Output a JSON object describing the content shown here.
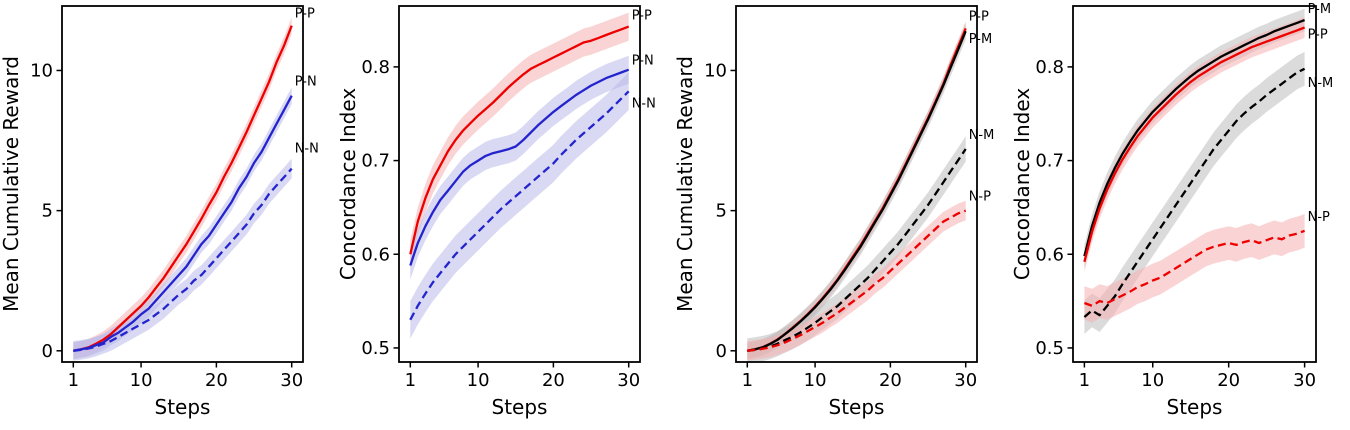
{
  "page": {
    "background": "#ffffff"
  },
  "colors": {
    "red": "#ee0000",
    "blue": "#2424cf",
    "black": "#000000",
    "red_band": "#f5b0b0",
    "blue_band": "#b9b9ea",
    "gray_band": "#bdbdbd"
  },
  "chart_data": [
    {
      "type": "line",
      "title": "",
      "xlabel": "Steps",
      "ylabel": "Mean Cumulative Reward",
      "grid": false,
      "legend": "end-labels",
      "x": [
        1,
        2,
        3,
        4,
        5,
        6,
        7,
        8,
        9,
        10,
        11,
        12,
        13,
        14,
        15,
        16,
        17,
        18,
        19,
        20,
        21,
        22,
        23,
        24,
        25,
        26,
        27,
        28,
        29,
        30
      ],
      "xlim": [
        -0.5,
        31.5
      ],
      "ylim": [
        -0.4,
        12.3
      ],
      "xticks": [
        1,
        10,
        20,
        30
      ],
      "xtick_labels": [
        "1",
        "10",
        "20",
        "30"
      ],
      "yticks": [
        0,
        5,
        10
      ],
      "ytick_labels": [
        "0",
        "5",
        "10"
      ],
      "series": [
        {
          "name": "P-P",
          "color": "red",
          "band_color": "red_band",
          "dash": false,
          "band": 0.3,
          "label_dx": 3,
          "label_dy": -8,
          "values": [
            0.0,
            0.05,
            0.12,
            0.25,
            0.4,
            0.6,
            0.85,
            1.1,
            1.35,
            1.6,
            1.9,
            2.25,
            2.6,
            3.0,
            3.4,
            3.8,
            4.25,
            4.7,
            5.2,
            5.65,
            6.2,
            6.7,
            7.25,
            7.8,
            8.4,
            9.0,
            9.6,
            10.3,
            10.9,
            11.6
          ]
        },
        {
          "name": "P-N",
          "color": "blue",
          "band_color": "blue_band",
          "dash": false,
          "band": 0.3,
          "label_dx": 3,
          "label_dy": -10,
          "values": [
            0.0,
            0.05,
            0.1,
            0.2,
            0.3,
            0.5,
            0.65,
            0.85,
            1.05,
            1.3,
            1.5,
            1.8,
            2.1,
            2.4,
            2.7,
            3.0,
            3.4,
            3.8,
            4.1,
            4.5,
            4.9,
            5.3,
            5.8,
            6.2,
            6.7,
            7.1,
            7.6,
            8.1,
            8.6,
            9.1
          ]
        },
        {
          "name": "N-N",
          "color": "blue",
          "band_color": "blue_band",
          "dash": true,
          "band": 0.35,
          "label_dx": 3,
          "label_dy": -16,
          "values": [
            0.0,
            0.03,
            0.08,
            0.15,
            0.25,
            0.35,
            0.5,
            0.65,
            0.8,
            0.95,
            1.1,
            1.3,
            1.5,
            1.75,
            2.0,
            2.2,
            2.5,
            2.7,
            3.0,
            3.3,
            3.6,
            3.9,
            4.2,
            4.5,
            4.9,
            5.2,
            5.6,
            5.9,
            6.2,
            6.5
          ]
        }
      ]
    },
    {
      "type": "line",
      "title": "",
      "xlabel": "Steps",
      "ylabel": "Concordance Index",
      "grid": false,
      "legend": "end-labels",
      "x": [
        1,
        2,
        3,
        4,
        5,
        6,
        7,
        8,
        9,
        10,
        11,
        12,
        13,
        14,
        15,
        16,
        17,
        18,
        19,
        20,
        21,
        22,
        23,
        24,
        25,
        26,
        27,
        28,
        29,
        30
      ],
      "xlim": [
        -0.5,
        31.5
      ],
      "ylim": [
        0.485,
        0.865
      ],
      "xticks": [
        1,
        10,
        20,
        30
      ],
      "xtick_labels": [
        "1",
        "10",
        "20",
        "30"
      ],
      "yticks": [
        0.5,
        0.6,
        0.7,
        0.8
      ],
      "ytick_labels": [
        "0.5",
        "0.6",
        "0.7",
        "0.8"
      ],
      "series": [
        {
          "name": "P-P",
          "color": "red",
          "band_color": "red_band",
          "dash": false,
          "band": 0.015,
          "label_dx": 3,
          "label_dy": -7,
          "values": [
            0.6,
            0.635,
            0.66,
            0.68,
            0.695,
            0.71,
            0.722,
            0.732,
            0.74,
            0.748,
            0.755,
            0.762,
            0.77,
            0.778,
            0.785,
            0.792,
            0.798,
            0.802,
            0.806,
            0.81,
            0.814,
            0.818,
            0.822,
            0.826,
            0.828,
            0.831,
            0.834,
            0.837,
            0.84,
            0.843
          ]
        },
        {
          "name": "P-N",
          "color": "blue",
          "band_color": "blue_band",
          "dash": false,
          "band": 0.015,
          "label_dx": 3,
          "label_dy": -5,
          "values": [
            0.588,
            0.612,
            0.63,
            0.645,
            0.658,
            0.668,
            0.678,
            0.688,
            0.695,
            0.7,
            0.705,
            0.708,
            0.71,
            0.712,
            0.715,
            0.722,
            0.73,
            0.738,
            0.745,
            0.752,
            0.758,
            0.764,
            0.77,
            0.775,
            0.78,
            0.784,
            0.788,
            0.791,
            0.794,
            0.797
          ]
        },
        {
          "name": "N-N",
          "color": "blue",
          "band_color": "blue_band",
          "dash": true,
          "band": 0.02,
          "label_dx": 3,
          "label_dy": 16,
          "values": [
            0.53,
            0.545,
            0.558,
            0.57,
            0.58,
            0.59,
            0.6,
            0.608,
            0.616,
            0.624,
            0.632,
            0.64,
            0.648,
            0.655,
            0.662,
            0.669,
            0.676,
            0.683,
            0.69,
            0.697,
            0.706,
            0.714,
            0.722,
            0.729,
            0.736,
            0.743,
            0.75,
            0.758,
            0.766,
            0.774
          ]
        }
      ]
    },
    {
      "type": "line",
      "title": "",
      "xlabel": "Steps",
      "ylabel": "Mean Cumulative Reward",
      "grid": false,
      "legend": "end-labels",
      "x": [
        1,
        2,
        3,
        4,
        5,
        6,
        7,
        8,
        9,
        10,
        11,
        12,
        13,
        14,
        15,
        16,
        17,
        18,
        19,
        20,
        21,
        22,
        23,
        24,
        25,
        26,
        27,
        28,
        29,
        30
      ],
      "xlim": [
        -0.5,
        31.5
      ],
      "ylim": [
        -0.4,
        12.3
      ],
      "xticks": [
        1,
        10,
        20,
        30
      ],
      "xtick_labels": [
        "1",
        "10",
        "20",
        "30"
      ],
      "yticks": [
        0,
        5,
        10
      ],
      "ytick_labels": [
        "0",
        "5",
        "10"
      ],
      "series": [
        {
          "name": "P-P",
          "color": "red",
          "band_color": "red_band",
          "dash": false,
          "band": 0.25,
          "label_dx": 3,
          "label_dy": -8,
          "values": [
            0.0,
            0.05,
            0.12,
            0.25,
            0.4,
            0.6,
            0.82,
            1.05,
            1.3,
            1.58,
            1.88,
            2.2,
            2.55,
            2.95,
            3.35,
            3.75,
            4.2,
            4.65,
            5.1,
            5.6,
            6.1,
            6.65,
            7.2,
            7.75,
            8.3,
            8.9,
            9.5,
            10.2,
            10.85,
            11.5
          ]
        },
        {
          "name": "P-M",
          "color": "black",
          "band_color": "gray_band",
          "dash": false,
          "band": 0.3,
          "label_dx": 3,
          "label_dy": 12,
          "values": [
            0.0,
            0.05,
            0.12,
            0.24,
            0.39,
            0.59,
            0.8,
            1.03,
            1.28,
            1.55,
            1.85,
            2.17,
            2.52,
            2.9,
            3.3,
            3.7,
            4.15,
            4.6,
            5.05,
            5.55,
            6.05,
            6.6,
            7.15,
            7.7,
            8.25,
            8.85,
            9.45,
            10.1,
            10.75,
            11.4
          ]
        },
        {
          "name": "N-M",
          "color": "black",
          "band_color": "gray_band",
          "dash": true,
          "band": 0.45,
          "label_dx": 3,
          "label_dy": -10,
          "values": [
            0.0,
            0.03,
            0.08,
            0.15,
            0.25,
            0.38,
            0.5,
            0.65,
            0.82,
            1.0,
            1.2,
            1.4,
            1.6,
            1.85,
            2.1,
            2.35,
            2.6,
            2.9,
            3.2,
            3.5,
            3.8,
            4.15,
            4.5,
            4.85,
            5.2,
            5.6,
            6.0,
            6.4,
            6.8,
            7.2
          ]
        },
        {
          "name": "N-P",
          "color": "red",
          "band_color": "red_band",
          "dash": true,
          "band": 0.35,
          "label_dx": 3,
          "label_dy": -10,
          "values": [
            0.0,
            0.03,
            0.07,
            0.12,
            0.2,
            0.3,
            0.42,
            0.55,
            0.7,
            0.85,
            1.0,
            1.18,
            1.35,
            1.55,
            1.75,
            1.95,
            2.15,
            2.4,
            2.6,
            2.85,
            3.1,
            3.35,
            3.6,
            3.85,
            4.1,
            4.35,
            4.6,
            4.75,
            4.9,
            5.0
          ]
        }
      ]
    },
    {
      "type": "line",
      "title": "",
      "xlabel": "Steps",
      "ylabel": "Concordance Index",
      "grid": false,
      "legend": "end-labels",
      "x": [
        1,
        2,
        3,
        4,
        5,
        6,
        7,
        8,
        9,
        10,
        11,
        12,
        13,
        14,
        15,
        16,
        17,
        18,
        19,
        20,
        21,
        22,
        23,
        24,
        25,
        26,
        27,
        28,
        29,
        30
      ],
      "xlim": [
        -0.5,
        31.5
      ],
      "ylim": [
        0.485,
        0.865
      ],
      "xticks": [
        1,
        10,
        20,
        30
      ],
      "xtick_labels": [
        "1",
        "10",
        "20",
        "30"
      ],
      "yticks": [
        0.5,
        0.6,
        0.7,
        0.8
      ],
      "ytick_labels": [
        "0.5",
        "0.6",
        "0.7",
        "0.8"
      ],
      "series": [
        {
          "name": "P-M",
          "color": "black",
          "band_color": "gray_band",
          "dash": false,
          "band": 0.012,
          "label_dx": 3,
          "label_dy": -7,
          "values": [
            0.598,
            0.63,
            0.655,
            0.675,
            0.692,
            0.707,
            0.72,
            0.732,
            0.742,
            0.752,
            0.76,
            0.768,
            0.776,
            0.783,
            0.79,
            0.796,
            0.801,
            0.806,
            0.811,
            0.815,
            0.819,
            0.823,
            0.827,
            0.831,
            0.834,
            0.838,
            0.841,
            0.844,
            0.847,
            0.85
          ]
        },
        {
          "name": "P-P",
          "color": "red",
          "band_color": "red_band",
          "dash": false,
          "band": 0.011,
          "label_dx": 3,
          "label_dy": 11,
          "values": [
            0.592,
            0.624,
            0.649,
            0.669,
            0.686,
            0.701,
            0.714,
            0.726,
            0.736,
            0.746,
            0.754,
            0.762,
            0.77,
            0.777,
            0.784,
            0.79,
            0.795,
            0.8,
            0.805,
            0.809,
            0.813,
            0.817,
            0.821,
            0.824,
            0.827,
            0.83,
            0.833,
            0.836,
            0.839,
            0.842
          ]
        },
        {
          "name": "N-M",
          "color": "black",
          "band_color": "gray_band",
          "dash": true,
          "band": 0.018,
          "label_dx": 3,
          "label_dy": 18,
          "values": [
            0.533,
            0.54,
            0.535,
            0.545,
            0.555,
            0.568,
            0.58,
            0.592,
            0.604,
            0.616,
            0.628,
            0.64,
            0.652,
            0.664,
            0.676,
            0.688,
            0.7,
            0.712,
            0.722,
            0.732,
            0.742,
            0.75,
            0.757,
            0.763,
            0.77,
            0.776,
            0.782,
            0.788,
            0.794,
            0.798
          ]
        },
        {
          "name": "N-P",
          "color": "red",
          "band_color": "red_band",
          "dash": true,
          "band": 0.018,
          "label_dx": 3,
          "label_dy": -10,
          "values": [
            0.548,
            0.545,
            0.55,
            0.548,
            0.552,
            0.556,
            0.56,
            0.565,
            0.568,
            0.572,
            0.575,
            0.58,
            0.585,
            0.59,
            0.595,
            0.6,
            0.605,
            0.608,
            0.61,
            0.612,
            0.61,
            0.613,
            0.615,
            0.612,
            0.615,
            0.618,
            0.616,
            0.62,
            0.622,
            0.625
          ]
        }
      ]
    }
  ]
}
